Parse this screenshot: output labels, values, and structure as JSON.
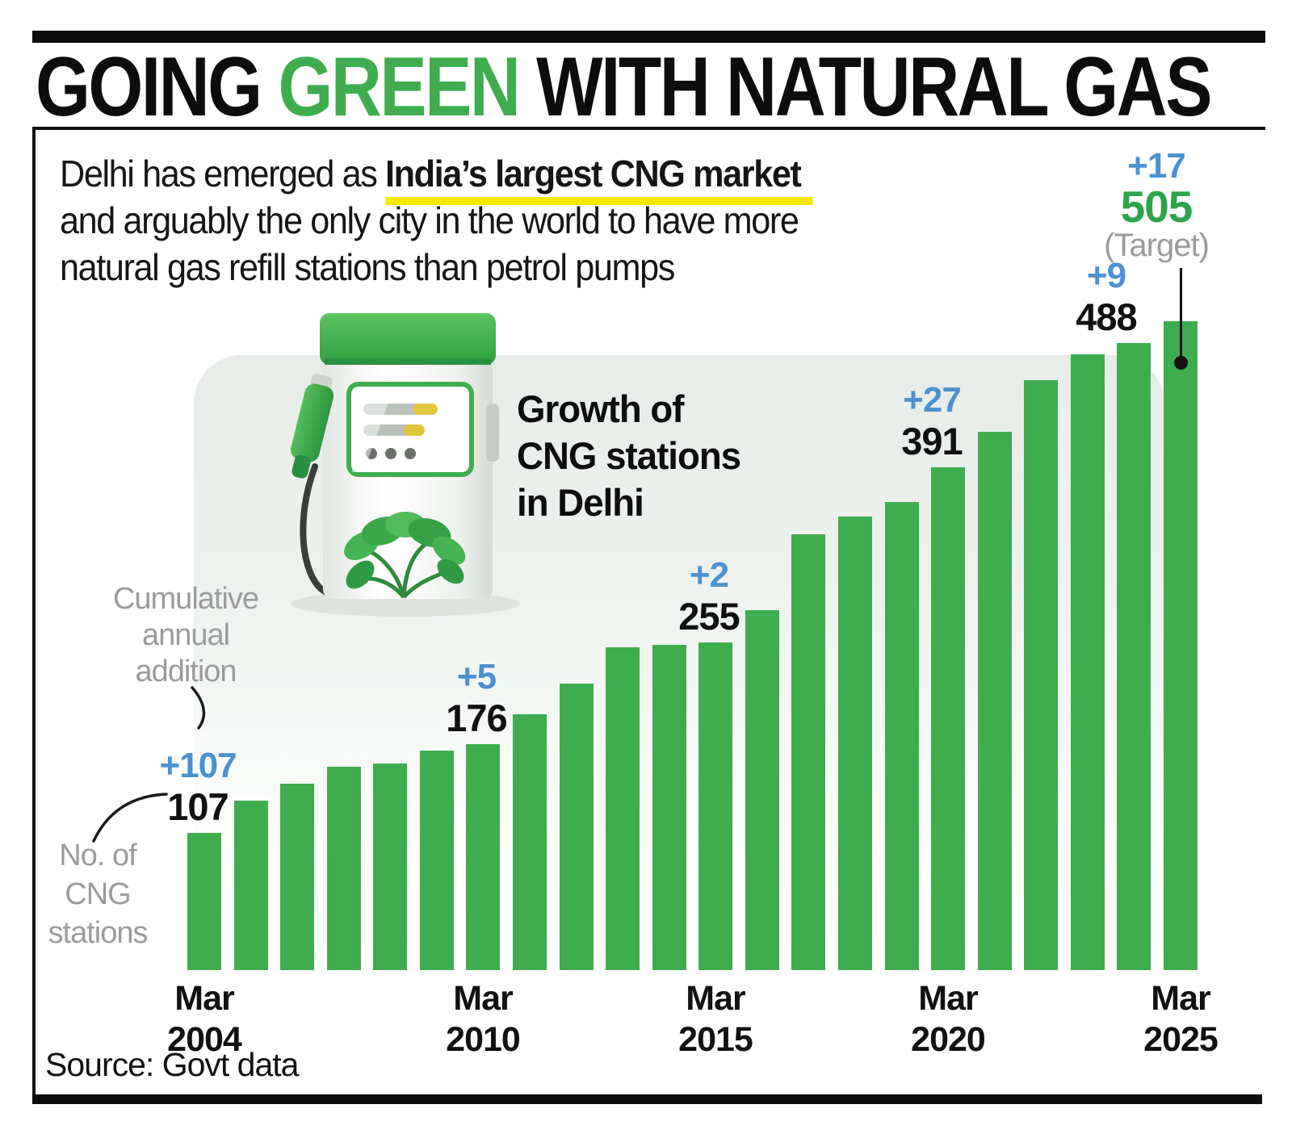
{
  "page": {
    "title_black1": "GOING ",
    "title_green": "GREEN",
    "title_black2": " WITH NATURAL GAS",
    "source": "Source: Govt data",
    "accent_green": "#3fad4e",
    "highlight_yellow": "#f5e900"
  },
  "intro": {
    "line1_pre": "Delhi has emerged as ",
    "line1_highlight": "India’s largest CNG market",
    "line2": "and arguably the only city in the world to have more",
    "line3": "natural gas refill stations than petrol pumps"
  },
  "chart_title": {
    "line1": "Growth of",
    "line2": "CNG stations",
    "line3": "in Delhi"
  },
  "labels": {
    "cumulative": {
      "line1": "Cumulative",
      "line2": "annual",
      "line3": "addition"
    },
    "stations": {
      "line1": "No. of",
      "line2": "CNG",
      "line3": "stations"
    }
  },
  "icons": {
    "pump": "cng-fuel-pump-with-leaves"
  },
  "chart_data": {
    "type": "bar",
    "title": "Growth of CNG stations in Delhi",
    "xlabel": "",
    "ylabel": "No. of CNG stations",
    "ylim": [
      0,
      520
    ],
    "grid": false,
    "legend": "none",
    "bar_color": "#3fad4e",
    "years": [
      2004,
      2005,
      2006,
      2007,
      2008,
      2009,
      2010,
      2011,
      2012,
      2013,
      2014,
      2015,
      2016,
      2017,
      2018,
      2019,
      2020,
      2021,
      2022,
      2023,
      2024,
      2025
    ],
    "values": [
      107,
      132,
      145,
      158,
      161,
      171,
      176,
      199,
      223,
      251,
      253,
      255,
      280,
      339,
      353,
      364,
      391,
      419,
      459,
      479,
      488,
      505
    ],
    "x_ticks": [
      {
        "index": 0,
        "line1": "Mar",
        "line2": "2004"
      },
      {
        "index": 6,
        "line1": "Mar",
        "line2": "2010"
      },
      {
        "index": 11,
        "line1": "Mar",
        "line2": "2015"
      },
      {
        "index": 16,
        "line1": "Mar",
        "line2": "2020"
      },
      {
        "index": 21,
        "line1": "Mar",
        "line2": "2025"
      }
    ],
    "annotations": [
      {
        "index": 0,
        "delta": "+107",
        "value": "107"
      },
      {
        "index": 6,
        "delta": "+5",
        "value": "176"
      },
      {
        "index": 11,
        "delta": "+2",
        "value": "255"
      },
      {
        "index": 16,
        "delta": "+27",
        "value": "391"
      },
      {
        "index": 20,
        "delta": "+9",
        "value": "488"
      },
      {
        "index": 21,
        "delta": "+17",
        "value": "505",
        "note": "(Target)",
        "target": true
      }
    ],
    "colors": {
      "delta": "#4a91d2",
      "value": "#111111",
      "target_value": "#2ea44a",
      "note": "#9b9b9b"
    }
  }
}
